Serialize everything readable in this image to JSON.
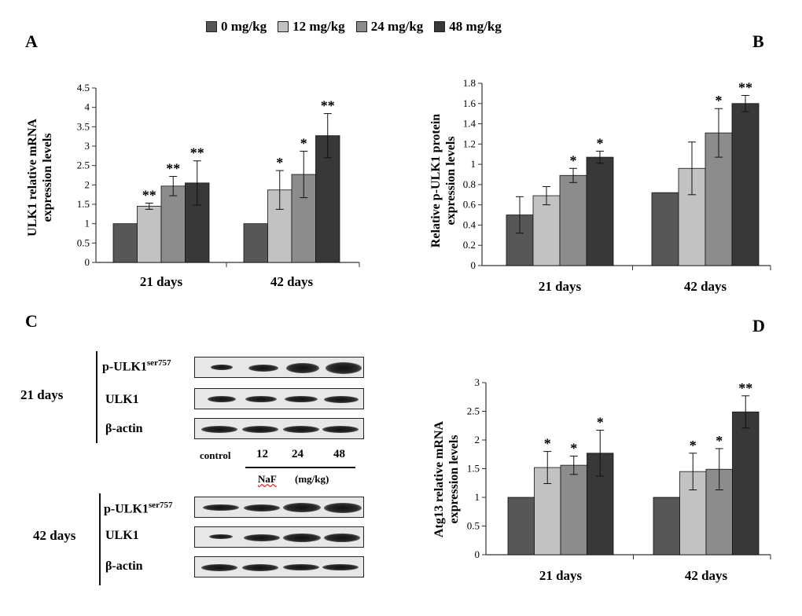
{
  "panels": {
    "A": "A",
    "B": "B",
    "C": "C",
    "D": "D"
  },
  "legend": {
    "items": [
      {
        "label": "0 mg/kg",
        "color": "#575757"
      },
      {
        "label": "12 mg/kg",
        "color": "#c2c2c2"
      },
      {
        "label": "24 mg/kg",
        "color": "#8c8c8c"
      },
      {
        "label": "48 mg/kg",
        "color": "#383838"
      }
    ]
  },
  "chart_data": [
    {
      "id": "A",
      "type": "bar",
      "ylabel": "ULK1 relative mRNA\nexpression levels",
      "categories": [
        "21 days",
        "42 days"
      ],
      "ylim": [
        0,
        4.5
      ],
      "yticks": [
        "0",
        "0.5",
        "1",
        "1.5",
        "2",
        "2.5",
        "3",
        "3.5",
        "4",
        "4.5"
      ],
      "series": [
        {
          "name": "0 mg/kg",
          "values": [
            1.0,
            1.0
          ],
          "errors": [
            0,
            0
          ],
          "sig": [
            "",
            ""
          ]
        },
        {
          "name": "12 mg/kg",
          "values": [
            1.45,
            1.87
          ],
          "errors": [
            0.08,
            0.5
          ],
          "sig": [
            "**",
            "*"
          ]
        },
        {
          "name": "24 mg/kg",
          "values": [
            1.97,
            2.27
          ],
          "errors": [
            0.25,
            0.6
          ],
          "sig": [
            "**",
            "*"
          ]
        },
        {
          "name": "48 mg/kg",
          "values": [
            2.05,
            3.27
          ],
          "errors": [
            0.57,
            0.57
          ],
          "sig": [
            "**",
            "**"
          ]
        }
      ]
    },
    {
      "id": "B",
      "type": "bar",
      "ylabel": "Relative p-ULK1 protein\nexpression levels",
      "categories": [
        "21 days",
        "42 days"
      ],
      "ylim": [
        0,
        1.8
      ],
      "yticks": [
        "0",
        "0.2",
        "0.4",
        "0.6",
        "0.8",
        "1",
        "1.2",
        "1.4",
        "1.6",
        "1.8"
      ],
      "series": [
        {
          "name": "0 mg/kg",
          "values": [
            0.5,
            0.72
          ],
          "errors": [
            0.18,
            0
          ],
          "sig": [
            "",
            ""
          ]
        },
        {
          "name": "12 mg/kg",
          "values": [
            0.69,
            0.96
          ],
          "errors": [
            0.09,
            0.26
          ],
          "sig": [
            "",
            ""
          ]
        },
        {
          "name": "24 mg/kg",
          "values": [
            0.89,
            1.31
          ],
          "errors": [
            0.07,
            0.24
          ],
          "sig": [
            "*",
            "*"
          ]
        },
        {
          "name": "48 mg/kg",
          "values": [
            1.07,
            1.6
          ],
          "errors": [
            0.06,
            0.08
          ],
          "sig": [
            "*",
            "**"
          ]
        }
      ]
    },
    {
      "id": "D",
      "type": "bar",
      "ylabel": "Atg13 relative mRNA\nexpression levels",
      "categories": [
        "21 days",
        "42 days"
      ],
      "ylim": [
        0,
        3
      ],
      "yticks": [
        "0",
        "0.5",
        "1",
        "1.5",
        "2",
        "2.5",
        "3"
      ],
      "series": [
        {
          "name": "0 mg/kg",
          "values": [
            1.0,
            1.0
          ],
          "errors": [
            0,
            0
          ],
          "sig": [
            "",
            ""
          ]
        },
        {
          "name": "12 mg/kg",
          "values": [
            1.52,
            1.45
          ],
          "errors": [
            0.28,
            0.32
          ],
          "sig": [
            "*",
            "*"
          ]
        },
        {
          "name": "24 mg/kg",
          "values": [
            1.56,
            1.49
          ],
          "errors": [
            0.16,
            0.36
          ],
          "sig": [
            "*",
            "*"
          ]
        },
        {
          "name": "48 mg/kg",
          "values": [
            1.77,
            2.49
          ],
          "errors": [
            0.4,
            0.28
          ],
          "sig": [
            "*",
            "**"
          ]
        }
      ]
    }
  ],
  "western": {
    "groups": [
      "21 days",
      "42 days"
    ],
    "rows": [
      "p-ULK1",
      "ULK1",
      "β-actin"
    ],
    "superscript": "ser757",
    "lanes": [
      "control",
      "12",
      "24",
      "48"
    ],
    "treatment": "NaF",
    "unit": "(mg/kg)"
  }
}
